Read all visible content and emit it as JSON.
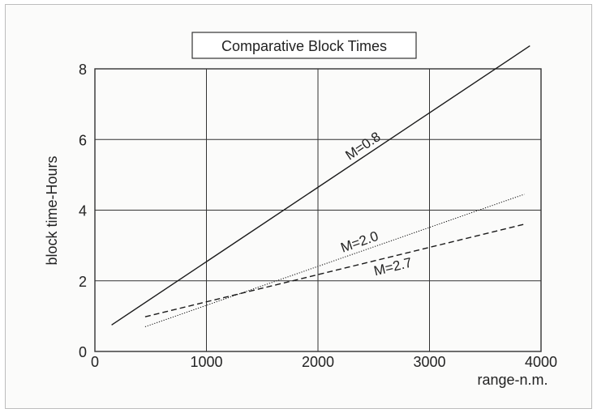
{
  "chart_data": {
    "type": "line",
    "title": "Comparative Block Times",
    "xlabel": "range-n.m.",
    "ylabel": "block time-Hours",
    "xlim": [
      0,
      4000
    ],
    "ylim": [
      0,
      8
    ],
    "x_ticks": [
      0,
      1000,
      2000,
      3000,
      4000
    ],
    "y_ticks": [
      0,
      2,
      4,
      6,
      8
    ],
    "grid": true,
    "colors": {
      "line": "#1a1a1a",
      "grid": "#333333",
      "background": "#fbfbfa"
    },
    "series": [
      {
        "name": "M=0.8",
        "dash": "solid",
        "x": [
          150,
          3900
        ],
        "y": [
          0.75,
          8.65
        ],
        "label_at": 2450
      },
      {
        "name": "M=2.0",
        "dash": "dotted",
        "x": [
          450,
          3850
        ],
        "y": [
          0.7,
          4.45
        ],
        "label_at": 2400
      },
      {
        "name": "M=2.7",
        "dash": "dashed",
        "x": [
          450,
          3850
        ],
        "y": [
          0.98,
          3.6
        ],
        "label_at": 2650
      }
    ]
  }
}
